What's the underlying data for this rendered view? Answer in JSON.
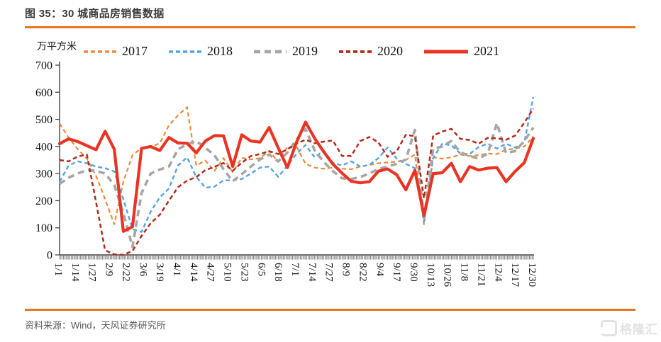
{
  "header": {
    "title": "图 35：30 城商品房销售数据"
  },
  "footer": {
    "source": "资料来源：Wind，天风证券研究所"
  },
  "watermark": {
    "text": "格隆汇",
    "icon": "gelonghui-logo",
    "color": "#e2e2e2"
  },
  "accent_color": "#e87722",
  "chart_data": {
    "type": "line",
    "title": "30 城商品房销售数据",
    "ylabel": "万平方米",
    "xlabel": "",
    "ylim": [
      0,
      700
    ],
    "yticks": [
      0,
      100,
      200,
      300,
      400,
      500,
      600,
      700
    ],
    "grid": false,
    "legend_position": "top",
    "x_tick_labels": [
      "1/1",
      "1/14",
      "1/27",
      "2/9",
      "2/22",
      "3/6",
      "3/19",
      "4/1",
      "4/14",
      "4/27",
      "5/10",
      "5/23",
      "6/5",
      "6/18",
      "7/1",
      "7/14",
      "7/27",
      "8/9",
      "8/22",
      "9/4",
      "9/17",
      "9/30",
      "10/13",
      "10/26",
      "11/8",
      "11/21",
      "12/4",
      "12/17",
      "12/30"
    ],
    "x_tick_interval_days": 13,
    "point_interval_days": 7,
    "series": [
      {
        "name": "2017",
        "color": "#ed8a3c",
        "dash": "6 4",
        "width": 2.2,
        "values": [
          485,
          432,
          390,
          355,
          292,
          205,
          113,
          270,
          368,
          395,
          398,
          412,
          478,
          515,
          545,
          330,
          348,
          310,
          357,
          305,
          358,
          352,
          357,
          383,
          343,
          398,
          400,
          336,
          322,
          318,
          322,
          318,
          316,
          326,
          332,
          338,
          341,
          344,
          350,
          370,
          113,
          360,
          355,
          360,
          370,
          365,
          368,
          374,
          372,
          388,
          392,
          400,
          437
        ]
      },
      {
        "name": "2018",
        "color": "#56a2e8",
        "dash": "6 4",
        "width": 2.4,
        "values": [
          270,
          330,
          345,
          338,
          326,
          320,
          308,
          205,
          95,
          85,
          160,
          212,
          245,
          330,
          360,
          288,
          248,
          252,
          275,
          275,
          280,
          300,
          322,
          326,
          288,
          330,
          372,
          405,
          360,
          385,
          340,
          330,
          345,
          326,
          332,
          357,
          396,
          355,
          336,
          320,
          122,
          357,
          410,
          404,
          374,
          372,
          398,
          410,
          392,
          410,
          396,
          414,
          583
        ]
      },
      {
        "name": "2019",
        "color": "#a6a6a6",
        "dash": "9 6",
        "width": 3.6,
        "values": [
          262,
          285,
          300,
          313,
          310,
          300,
          258,
          155,
          30,
          228,
          300,
          315,
          326,
          390,
          408,
          420,
          395,
          368,
          316,
          272,
          298,
          326,
          352,
          370,
          345,
          378,
          425,
          465,
          385,
          343,
          309,
          283,
          280,
          287,
          300,
          317,
          326,
          336,
          352,
          461,
          130,
          391,
          400,
          420,
          378,
          365,
          355,
          374,
          486,
          376,
          383,
          420,
          470
        ]
      },
      {
        "name": "2020",
        "color": "#b22a1c",
        "dash": "6 4",
        "width": 2.5,
        "values": [
          350,
          345,
          363,
          370,
          195,
          17,
          2,
          0,
          15,
          70,
          117,
          148,
          200,
          250,
          274,
          287,
          313,
          325,
          339,
          310,
          340,
          365,
          372,
          383,
          372,
          390,
          410,
          425,
          412,
          418,
          422,
          365,
          365,
          420,
          435,
          415,
          362,
          382,
          443,
          438,
          209,
          440,
          455,
          465,
          428,
          424,
          410,
          432,
          430,
          425,
          440,
          487,
          540
        ]
      },
      {
        "name": "2021",
        "color": "#ea3423",
        "dash": "none",
        "width": 4.2,
        "values": [
          410,
          428,
          418,
          403,
          388,
          456,
          390,
          87,
          104,
          393,
          400,
          385,
          433,
          413,
          412,
          376,
          420,
          440,
          439,
          326,
          443,
          420,
          416,
          470,
          395,
          322,
          415,
          490,
          430,
          380,
          335,
          302,
          272,
          266,
          270,
          309,
          317,
          296,
          240,
          312,
          145,
          300,
          303,
          338,
          270,
          326,
          313,
          320,
          322,
          270,
          308,
          340,
          430
        ]
      }
    ]
  }
}
